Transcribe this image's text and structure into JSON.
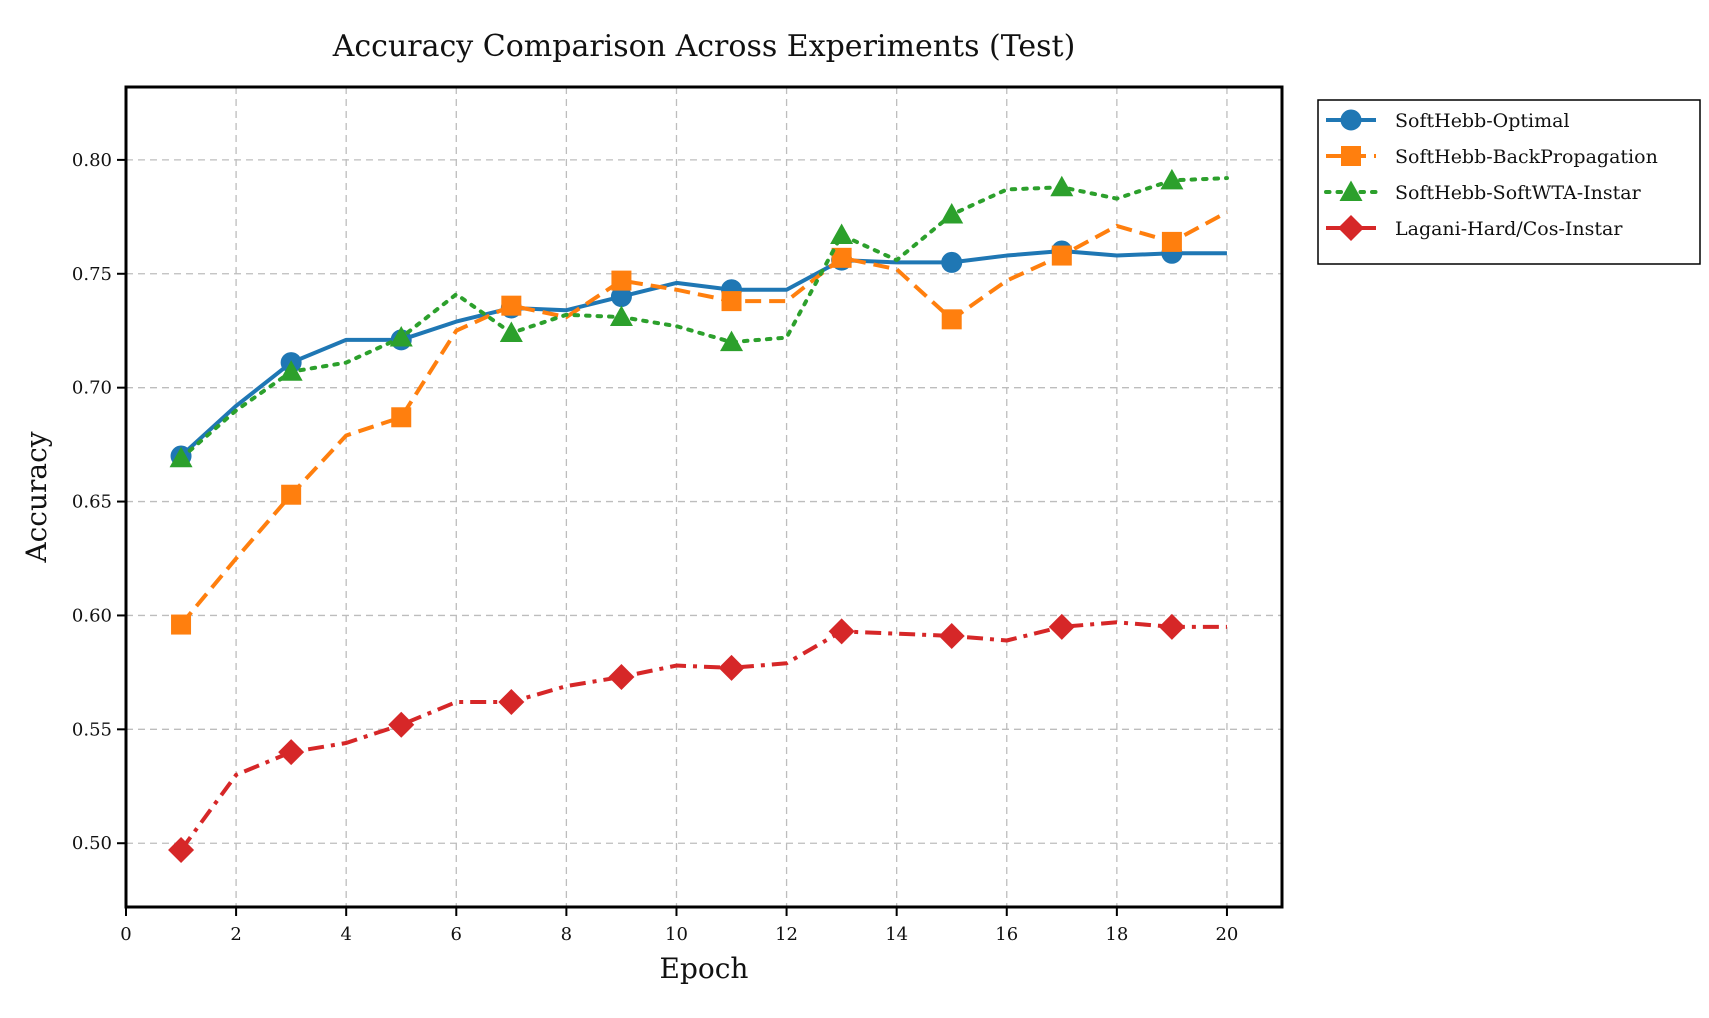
{
  "chart_data": {
    "type": "line",
    "title": "Accuracy Comparison Across Experiments (Test)",
    "xlabel": "Epoch",
    "ylabel": "Accuracy",
    "xlim": [
      0,
      21
    ],
    "ylim": [
      0.472,
      0.832
    ],
    "xticks": [
      0,
      2,
      4,
      6,
      8,
      10,
      12,
      14,
      16,
      18,
      20
    ],
    "yticks": [
      0.5,
      0.55,
      0.6,
      0.65,
      0.7,
      0.75,
      0.8
    ],
    "xtick_labels": [
      "0",
      "2",
      "4",
      "6",
      "8",
      "10",
      "12",
      "14",
      "16",
      "18",
      "20"
    ],
    "ytick_labels": [
      "0.50",
      "0.55",
      "0.60",
      "0.65",
      "0.70",
      "0.75",
      "0.80"
    ],
    "grid": true,
    "grid_style": "dashed",
    "legend_position": "outside-upper-right",
    "x": [
      1,
      2,
      3,
      4,
      5,
      6,
      7,
      8,
      9,
      10,
      11,
      12,
      13,
      14,
      15,
      16,
      17,
      18,
      19,
      20
    ],
    "series": [
      {
        "name": "SoftHebb-Optimal",
        "color": "#1f77b4",
        "line_style": "solid",
        "marker": "circle",
        "marker_every": 2,
        "values": [
          0.67,
          0.692,
          0.711,
          0.721,
          0.721,
          0.729,
          0.735,
          0.734,
          0.74,
          0.746,
          0.743,
          0.743,
          0.756,
          0.755,
          0.755,
          0.758,
          0.76,
          0.758,
          0.759,
          0.759
        ]
      },
      {
        "name": "SoftHebb-BackPropagation",
        "color": "#ff7f0e",
        "line_style": "dashed",
        "marker": "square",
        "marker_every": 2,
        "values": [
          0.596,
          0.625,
          0.653,
          0.679,
          0.687,
          0.725,
          0.736,
          0.731,
          0.747,
          0.743,
          0.738,
          0.738,
          0.757,
          0.752,
          0.73,
          0.747,
          0.758,
          0.771,
          0.764,
          0.777
        ]
      },
      {
        "name": "SoftHebb-SoftWTA-Instar",
        "color": "#2ca02c",
        "line_style": "dotted",
        "marker": "triangle",
        "marker_every": 2,
        "values": [
          0.669,
          0.69,
          0.707,
          0.711,
          0.722,
          0.741,
          0.724,
          0.732,
          0.731,
          0.727,
          0.72,
          0.722,
          0.767,
          0.756,
          0.776,
          0.787,
          0.788,
          0.783,
          0.791,
          0.792
        ]
      },
      {
        "name": "Lagani-Hard/Cos-Instar",
        "color": "#d62728",
        "line_style": "dashdot",
        "marker": "diamond",
        "marker_every": 2,
        "values": [
          0.497,
          0.53,
          0.54,
          0.544,
          0.552,
          0.562,
          0.562,
          0.569,
          0.573,
          0.578,
          0.577,
          0.579,
          0.593,
          0.592,
          0.591,
          0.589,
          0.595,
          0.597,
          0.595,
          0.595
        ]
      }
    ]
  }
}
